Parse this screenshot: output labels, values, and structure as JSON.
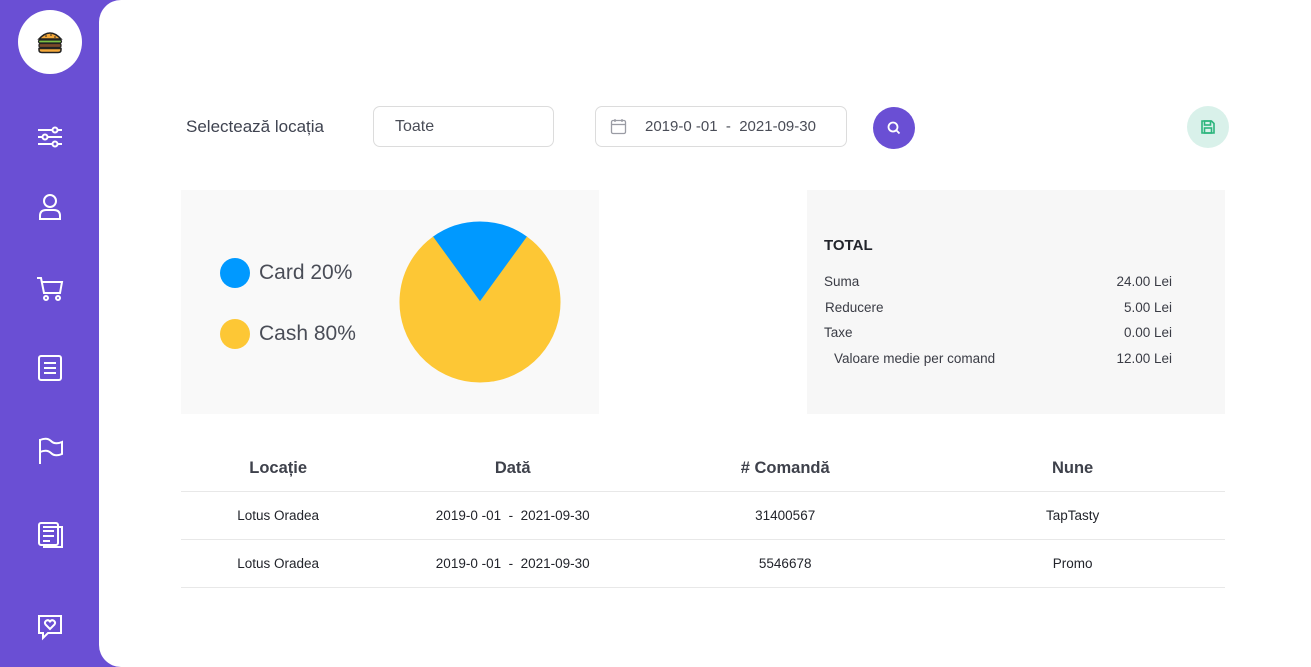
{
  "filters": {
    "location_label": "Selectează locația",
    "location_value": "Toate",
    "date_range": "2019-0 -01  -  2021-09-30"
  },
  "icons": {
    "logo": "burger-icon",
    "nav": [
      "sliders-icon",
      "user-icon",
      "cart-icon",
      "document-list-icon",
      "flag-icon",
      "notes-icon",
      "heart-chat-icon"
    ],
    "search": "search-icon",
    "save": "save-icon"
  },
  "colors": {
    "sidebar": "#6a4fd4",
    "card": "#0099ff",
    "cash": "#fdc735",
    "save_bg": "#d9f1ea",
    "save_icon": "#2bb57c"
  },
  "chart_data": {
    "type": "pie",
    "slices": [
      {
        "label": "Card 20%",
        "value": 20,
        "color": "#0099ff"
      },
      {
        "label": "Cash 80%",
        "value": 80,
        "color": "#fdc735"
      }
    ]
  },
  "totals": {
    "title": "TOTAL",
    "rows": [
      {
        "label": "Suma",
        "value": "24.00 Lei"
      },
      {
        "label": "Reducere",
        "value": "5.00 Lei"
      },
      {
        "label": "Taxe",
        "value": "0.00 Lei"
      },
      {
        "label": "Valoare medie per comand",
        "value": "12.00 Lei"
      }
    ]
  },
  "table": {
    "headers": [
      "Locație",
      "Dată",
      "# Comandă",
      "Nune"
    ],
    "rows": [
      [
        "Lotus Oradea",
        "2019-0 -01  -  2021-09-30",
        "31400567",
        "TapTasty"
      ],
      [
        "Lotus Oradea",
        "2019-0 -01  -  2021-09-30",
        "5546678",
        "Promo"
      ]
    ]
  }
}
